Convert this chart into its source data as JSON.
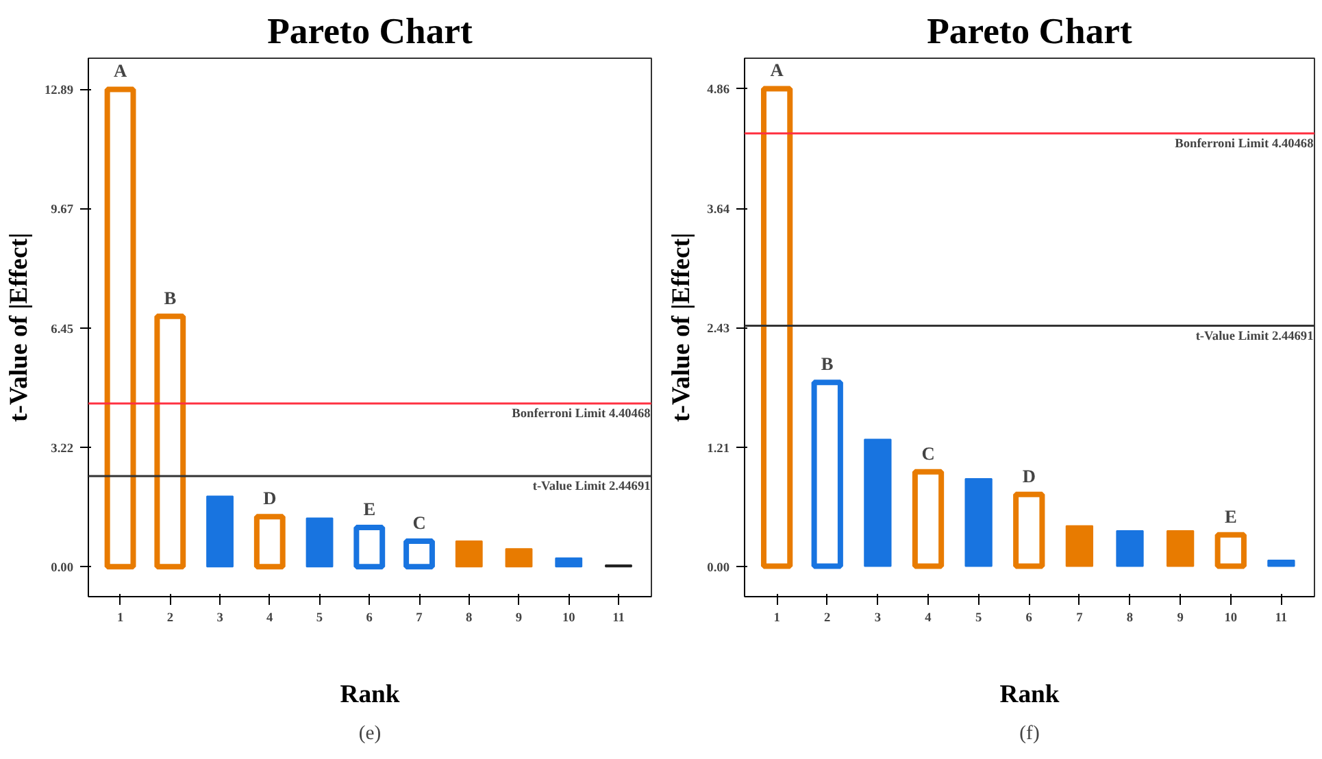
{
  "chart_data": [
    {
      "type": "bar",
      "title": "Pareto Chart",
      "xlabel": "Rank",
      "ylabel": "t-Value of |Effect|",
      "categories": [
        "1",
        "2",
        "3",
        "4",
        "5",
        "6",
        "7",
        "8",
        "9",
        "10",
        "11"
      ],
      "values": [
        12.89,
        6.76,
        1.9,
        1.35,
        1.31,
        1.06,
        0.69,
        0.69,
        0.48,
        0.23,
        0.04
      ],
      "colors": [
        "#e87b00",
        "#e87b00",
        "#1874e0",
        "#e87b00",
        "#1874e0",
        "#1874e0",
        "#1874e0",
        "#e87b00",
        "#e87b00",
        "#1874e0",
        "#222222"
      ],
      "value_labels": [
        "A",
        "B",
        null,
        "D",
        null,
        "E",
        "C",
        null,
        null,
        null,
        null
      ],
      "ylim": [
        -0.81,
        13.73
      ],
      "yticks": [
        {
          "value": 0,
          "label": "0.00"
        },
        3.22,
        6.45,
        9.67,
        12.89
      ],
      "ref_lines": [
        {
          "axis": "y",
          "value": 4.40468,
          "label": "Bonferroni Limit 4.40468",
          "color": "#ff3040"
        },
        {
          "axis": "y",
          "value": 2.44691,
          "label": "t-Value Limit 2.44691",
          "color": "#333333"
        }
      ],
      "annotations": [
        "(e)"
      ]
    },
    {
      "type": "bar",
      "title": "Pareto Chart",
      "xlabel": "Rank",
      "ylabel": "t-Value of |Effect|",
      "categories": [
        "1",
        "2",
        "3",
        "4",
        "5",
        "6",
        "7",
        "8",
        "9",
        "10",
        "11"
      ],
      "values": [
        4.86,
        1.87,
        1.29,
        0.96,
        0.89,
        0.73,
        0.41,
        0.36,
        0.36,
        0.32,
        0.06
      ],
      "colors": [
        "#e87b00",
        "#1874e0",
        "#1874e0",
        "#e87b00",
        "#1874e0",
        "#e87b00",
        "#e87b00",
        "#1874e0",
        "#e87b00",
        "#e87b00",
        "#1874e0"
      ],
      "value_labels": [
        "A",
        "B",
        null,
        "C",
        null,
        "D",
        null,
        null,
        null,
        "E",
        null
      ],
      "ylim": [
        -0.31,
        5.17
      ],
      "yticks": [
        {
          "value": 0,
          "label": "0.00"
        },
        1.21,
        2.43,
        3.64,
        4.86
      ],
      "ref_lines": [
        {
          "axis": "y",
          "value": 4.40468,
          "label": "Bonferroni Limit 4.40468",
          "color": "#ff3040"
        },
        {
          "axis": "y",
          "value": 2.44691,
          "label": "t-Value Limit 2.44691",
          "color": "#333333"
        }
      ],
      "annotations": [
        "(f)"
      ]
    }
  ]
}
